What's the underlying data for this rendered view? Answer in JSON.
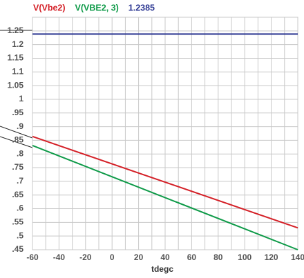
{
  "chart_data": {
    "type": "line",
    "x_label": "tdegc",
    "x": [
      -60,
      140
    ],
    "series": [
      {
        "name": "V(Vbe2)",
        "color": "#d42027",
        "values": [
          0.864,
          0.53
        ]
      },
      {
        "name": "V(VBE2, 3)",
        "color": "#0e9a48",
        "values": [
          0.831,
          0.45
        ]
      },
      {
        "name": "1.2385",
        "color": "#2a3591",
        "values": [
          1.2385,
          1.2385
        ]
      }
    ],
    "xlim": [
      -60,
      140
    ],
    "xticks": [
      -60,
      -40,
      -20,
      0,
      20,
      40,
      60,
      80,
      100,
      120,
      140
    ],
    "ylim": [
      0.45,
      1.3
    ],
    "yticks": [
      {
        "value": 0.45,
        "label": ".45"
      },
      {
        "value": 0.5,
        "label": ".5"
      },
      {
        "value": 0.55,
        "label": ".55"
      },
      {
        "value": 0.6,
        "label": ".6"
      },
      {
        "value": 0.65,
        "label": ".65"
      },
      {
        "value": 0.7,
        "label": ".7"
      },
      {
        "value": 0.75,
        "label": ".75"
      },
      {
        "value": 0.8,
        "label": ".8"
      },
      {
        "value": 0.85,
        "label": ".85"
      },
      {
        "value": 0.9,
        "label": ".9"
      },
      {
        "value": 0.95,
        "label": ".95"
      },
      1,
      1.05,
      1.1,
      1.15,
      1.2,
      1.25
    ],
    "grid": true
  }
}
